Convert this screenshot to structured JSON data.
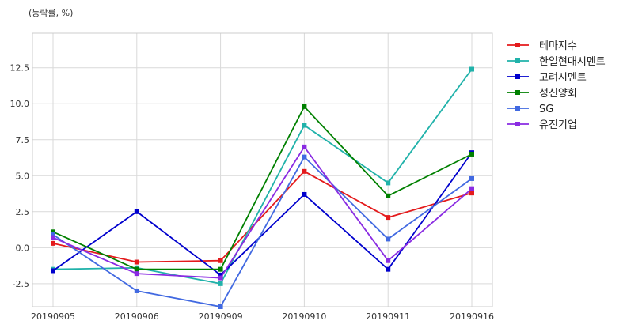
{
  "chart_data": {
    "type": "line",
    "unit_label": "(등락률, %)",
    "categories": [
      "20190905",
      "20190906",
      "20190909",
      "20190910",
      "20190911",
      "20190916"
    ],
    "y_ticks": [
      -2.5,
      0.0,
      2.5,
      5.0,
      7.5,
      10.0,
      12.5
    ],
    "y_tick_labels": [
      "-2.5",
      "0.0",
      "2.5",
      "5.0",
      "7.5",
      "10.0",
      "12.5"
    ],
    "ylim": [
      -4.1,
      14.9
    ],
    "grid": true,
    "legend_position": "right",
    "series": [
      {
        "name": "테마지수",
        "color": "#e41a1c",
        "values": [
          0.3,
          -1.0,
          -0.9,
          5.3,
          2.1,
          3.8
        ]
      },
      {
        "name": "한일현대시멘트",
        "color": "#20b2aa",
        "values": [
          -1.5,
          -1.4,
          -2.5,
          8.5,
          4.5,
          12.4
        ]
      },
      {
        "name": "고려시멘트",
        "color": "#0000cd",
        "values": [
          -1.6,
          2.5,
          -1.9,
          3.7,
          -1.5,
          6.6
        ]
      },
      {
        "name": "성신양회",
        "color": "#008000",
        "values": [
          1.1,
          -1.5,
          -1.5,
          9.8,
          3.6,
          6.5
        ]
      },
      {
        "name": "SG",
        "color": "#4169e1",
        "values": [
          0.9,
          -3.0,
          -4.1,
          6.3,
          0.6,
          4.8
        ]
      },
      {
        "name": "유진기업",
        "color": "#8a2be2",
        "values": [
          0.7,
          -1.8,
          -2.1,
          7.0,
          -0.9,
          4.1
        ]
      }
    ]
  }
}
